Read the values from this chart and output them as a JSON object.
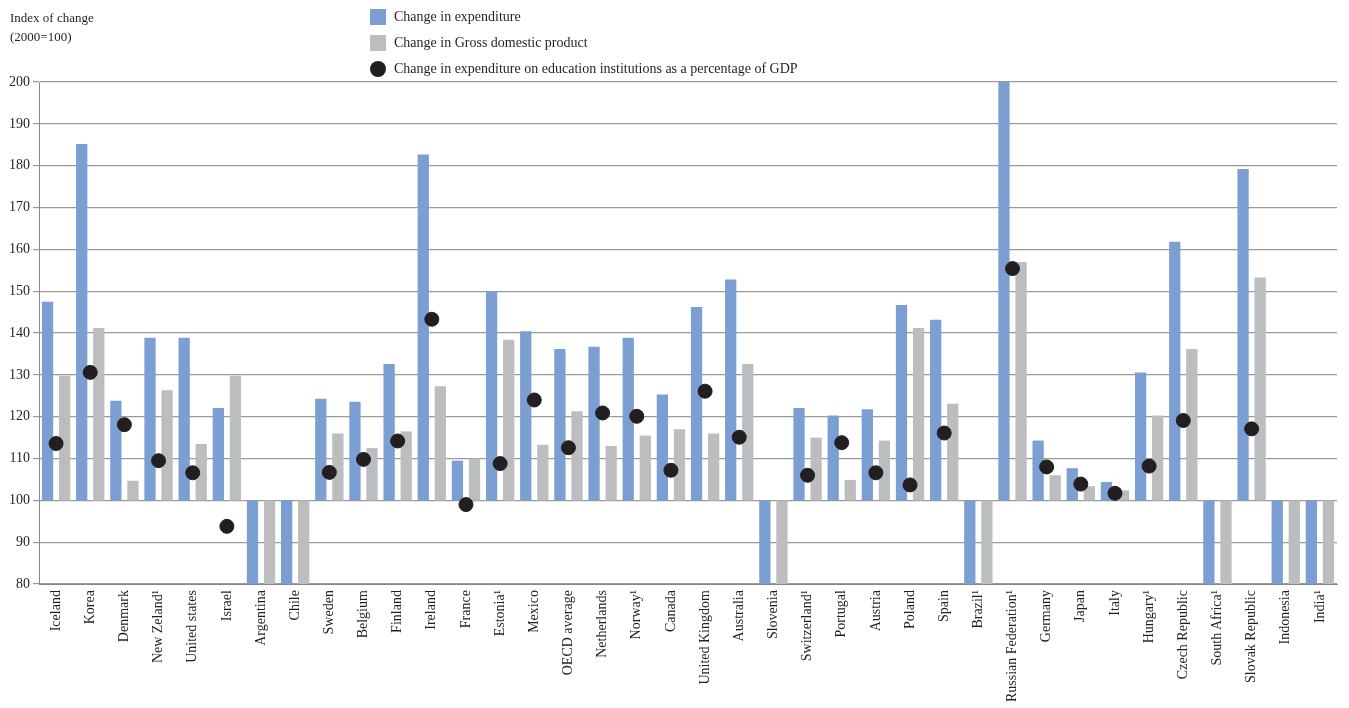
{
  "chart_data": {
    "type": "bar",
    "ylabel": "Index of change\n(2000=100)",
    "categories": [
      "Iceland",
      "Korea",
      "Denmark",
      "New Zeland¹",
      "United states",
      "Israel",
      "Argentina",
      "Chile",
      "Sweden",
      "Belgium",
      "Finland",
      "Ireland",
      "France",
      "Estonia¹",
      "Mexico",
      "OECD average",
      "Netherlands",
      "Norway¹",
      "Canada",
      "United Kingdom",
      "Australia",
      "Slovenia",
      "Switzerland¹",
      "Portugal",
      "Austria",
      "Poland",
      "Spain",
      "Brazil¹",
      "Russian Federation¹",
      "Germany",
      "Japan",
      "Italy",
      "Hungary¹",
      "Czech Republic",
      "South Africa¹",
      "Slovak Republic",
      "Indonesia",
      "India¹"
    ],
    "series": [
      {
        "name": "Change in expenditure",
        "color": "#7b9fd2",
        "base": [
          100,
          100,
          100,
          100,
          100,
          100,
          100,
          100,
          100,
          100,
          100,
          100,
          100,
          100,
          100,
          100,
          100,
          100,
          100,
          100,
          100,
          100,
          100,
          100,
          100,
          100,
          100,
          100,
          100,
          100,
          100,
          100,
          100,
          100,
          100,
          100,
          100,
          100
        ],
        "values": [
          47.5,
          85.2,
          23.8,
          38.9,
          38.9,
          22.1,
          -20,
          -20,
          24.3,
          23.6,
          32.6,
          82.7,
          9.5,
          49.9,
          40.4,
          36.2,
          36.7,
          38.9,
          25.3,
          46.2,
          52.8,
          -20,
          22.1,
          20.3,
          21.8,
          46.7,
          43.2,
          -20,
          100,
          14.3,
          7.7,
          4.4,
          30.6,
          61.8,
          -20,
          79.2,
          -20,
          -20
        ]
      },
      {
        "name": "Change in Gross domestic product",
        "color": "#bcbdbf",
        "base": [
          100,
          100,
          100,
          100,
          100,
          100,
          100,
          100,
          100,
          100,
          100,
          100,
          100,
          100,
          100,
          100,
          100,
          100,
          100,
          100,
          100,
          100,
          100,
          100,
          100,
          100,
          100,
          100,
          100,
          100,
          100,
          100,
          100,
          100,
          100,
          100,
          100,
          100
        ],
        "values": [
          29.8,
          41.2,
          4.7,
          26.3,
          13.5,
          29.8,
          -20,
          -20,
          16,
          12.5,
          16.5,
          27.3,
          10,
          38.4,
          13.3,
          21.3,
          13,
          15.5,
          17,
          16,
          32.6,
          -20,
          15,
          4.9,
          14.3,
          41.2,
          23.1,
          -20,
          57,
          6,
          3.4,
          2.4,
          20.3,
          36.2,
          -20,
          53.3,
          -20,
          -20
        ]
      },
      {
        "name": "Change in expenditure on education institutions as a percentage of GDP",
        "type": "scatter",
        "color": "#231f20",
        "values": [
          113.6,
          130.6,
          118.1,
          109.5,
          106.6,
          93.8,
          null,
          null,
          106.7,
          109.8,
          114.2,
          143.3,
          99,
          108.8,
          124,
          112.6,
          120.9,
          120.1,
          107.2,
          126.1,
          115.1,
          null,
          106,
          113.8,
          106.6,
          103.7,
          116.1,
          null,
          155.4,
          108,
          103.9,
          101.7,
          108.2,
          119.1,
          null,
          117.1,
          null,
          null
        ]
      }
    ],
    "ylim": [
      80,
      200
    ],
    "yticks": [
      80,
      90,
      100,
      110,
      120,
      130,
      140,
      150,
      160,
      170,
      180,
      190,
      200
    ],
    "grid": "y",
    "legend": "top",
    "marker": "circle"
  }
}
